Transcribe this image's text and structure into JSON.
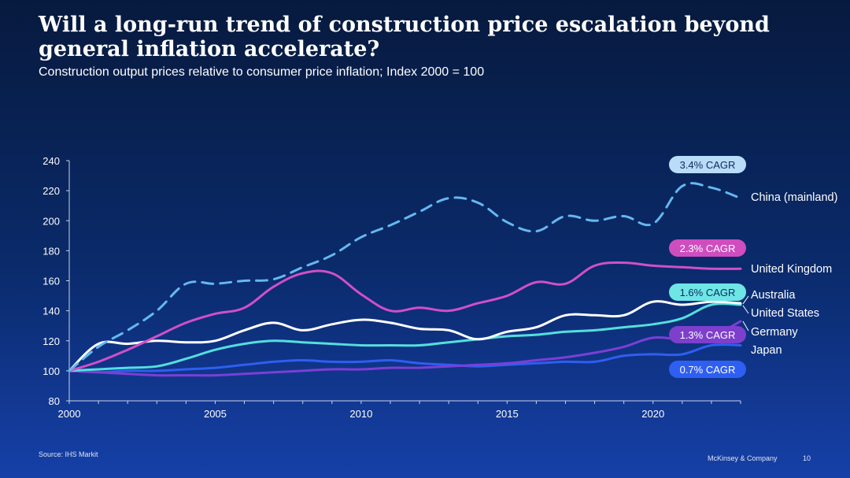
{
  "slide": {
    "title": "Will a long-run trend of construction price escalation beyond general inflation accelerate?",
    "subtitle": "Construction output prices relative to consumer price inflation; Index 2000 = 100",
    "source": "Source: IHS Markit",
    "brand": "McKinsey & Company",
    "page_number": "10"
  },
  "chart_data": {
    "type": "line",
    "title": "Construction output prices relative to consumer price inflation; Index 2000 = 100",
    "xlabel": "",
    "ylabel": "",
    "xlim": [
      2000,
      2023
    ],
    "ylim": [
      80,
      240
    ],
    "x_ticks": [
      2000,
      2005,
      2010,
      2015,
      2020
    ],
    "y_ticks": [
      80,
      100,
      120,
      140,
      160,
      180,
      200,
      220,
      240
    ],
    "x": [
      2000,
      2001,
      2002,
      2003,
      2004,
      2005,
      2006,
      2007,
      2008,
      2009,
      2010,
      2011,
      2012,
      2013,
      2014,
      2015,
      2016,
      2017,
      2018,
      2019,
      2020,
      2021,
      2022,
      2023
    ],
    "series": [
      {
        "name": "China (mainland)",
        "color": "#64b8f0",
        "dashed": true,
        "values": [
          100,
          116,
          127,
          140,
          158,
          158,
          160,
          161,
          169,
          177,
          189,
          197,
          206,
          215,
          212,
          199,
          193,
          203,
          200,
          203,
          198,
          223,
          222,
          215
        ]
      },
      {
        "name": "United Kingdom",
        "color": "#d14fc8",
        "dashed": false,
        "values": [
          100,
          106,
          114,
          123,
          132,
          138,
          142,
          156,
          165,
          165,
          151,
          140,
          142,
          140,
          145,
          150,
          159,
          158,
          170,
          172,
          170,
          169,
          168,
          168
        ]
      },
      {
        "name": "Australia",
        "color": "#ffffff",
        "dashed": false,
        "values": [
          100,
          118,
          118,
          120,
          119,
          120,
          127,
          132,
          127,
          131,
          134,
          132,
          128,
          127,
          121,
          126,
          129,
          137,
          137,
          137,
          146,
          144,
          146,
          145
        ]
      },
      {
        "name": "United States",
        "color": "#55dede",
        "dashed": false,
        "values": [
          100,
          101,
          102,
          103,
          108,
          114,
          118,
          120,
          119,
          118,
          117,
          117,
          117,
          119,
          121,
          123,
          124,
          126,
          127,
          129,
          131,
          135,
          144,
          144
        ]
      },
      {
        "name": "Germany",
        "color": "#7a3fd6",
        "dashed": false,
        "values": [
          100,
          99,
          98,
          97,
          97,
          97,
          98,
          99,
          100,
          101,
          101,
          102,
          102,
          103,
          104,
          105,
          107,
          109,
          112,
          116,
          122,
          121,
          123,
          133
        ]
      },
      {
        "name": "Japan",
        "color": "#2f5ef0",
        "dashed": false,
        "values": [
          100,
          99,
          100,
          100,
          101,
          102,
          104,
          106,
          107,
          106,
          106,
          107,
          105,
          104,
          103,
          104,
          105,
          106,
          106,
          110,
          111,
          111,
          117,
          117
        ]
      }
    ],
    "annotations": [
      {
        "label": "3.4% CAGR",
        "series": "China (mainland)",
        "color": "#b9ddf8",
        "text_color": "#0d2a5a"
      },
      {
        "label": "2.3% CAGR",
        "series": "United Kingdom",
        "color": "#cf4dbf",
        "text_color": "#ffffff"
      },
      {
        "label": "1.6% CAGR",
        "series": "Australia",
        "color": "#6fe6e6",
        "text_color": "#0d2a5a"
      },
      {
        "label": "1.3% CAGR",
        "series": "Germany",
        "color": "#7d3fcc",
        "text_color": "#ffffff"
      },
      {
        "label": "0.7% CAGR",
        "series": "Japan",
        "color": "#2e5ff2",
        "text_color": "#ffffff"
      }
    ]
  }
}
